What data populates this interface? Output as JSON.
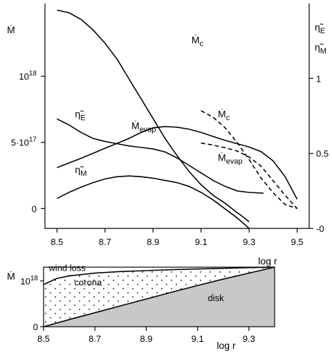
{
  "chart_data": [
    {
      "type": "line",
      "xlabel": "log r",
      "ylabel": "Ṁ",
      "y2label": [
        "η̃E",
        "η̃M"
      ],
      "xlim": [
        8.45,
        9.55
      ],
      "ylim": [
        -1.5e+17,
        1.55e+18
      ],
      "y2lim": [
        0,
        1.5
      ],
      "x_ticks": [
        8.5,
        8.7,
        8.9,
        9.1,
        9.3,
        9.5
      ],
      "x_tick_labels": [
        "8.5",
        "8.7",
        "8.9",
        "9.1",
        "9.3",
        "9.5"
      ],
      "y_ticks": [
        0,
        5e+17,
        1e+18
      ],
      "y_tick_labels": [
        "0",
        "5·10¹⁷",
        "10¹⁸"
      ],
      "y2_ticks": [
        0,
        0.5,
        1
      ],
      "y2_tick_labels": [
        "0",
        "0.5",
        "1"
      ],
      "grid": false,
      "series": [
        {
          "name": "Ṁc",
          "style": "solid",
          "x": [
            8.5,
            8.55,
            8.6,
            8.65,
            8.7,
            8.75,
            8.8,
            8.85,
            8.9,
            8.95,
            9.0,
            9.05,
            9.1,
            9.15,
            9.2,
            9.25,
            9.28,
            9.3
          ],
          "y": [
            1.5e+18,
            1.48e+18,
            1.43e+18,
            1.35e+18,
            1.25e+18,
            1.13e+18,
            9.8e+17,
            8.3e+17,
            6.8e+17,
            5.3e+17,
            4e+17,
            2.8e+17,
            1.8e+17,
            1e+17,
            4e+16,
            -3e+16,
            -7e+16,
            -1e+17
          ]
        },
        {
          "name": "Ṁevap",
          "style": "solid",
          "x": [
            8.5,
            8.6,
            8.7,
            8.8,
            8.85,
            8.9,
            8.95,
            9.0,
            9.05,
            9.1,
            9.15,
            9.2,
            9.25,
            9.3,
            9.35,
            9.4,
            9.45,
            9.5
          ],
          "y": [
            3.1e+17,
            3.8e+17,
            4.55e+17,
            5.3e+17,
            5.75e+17,
            6.1e+17,
            6.2e+17,
            6.15e+17,
            6e+17,
            5.75e+17,
            5.45e+17,
            5.15e+17,
            4.9e+17,
            4.65e+17,
            4.3e+17,
            3.6e+17,
            2.4e+17,
            7e+16
          ]
        },
        {
          "name": "η̃E",
          "style": "solid",
          "axis": "y2",
          "x": [
            8.5,
            8.55,
            8.6,
            8.65,
            8.7,
            8.75,
            8.8,
            8.85,
            8.9,
            8.95,
            9.0,
            9.05,
            9.1,
            9.15,
            9.2,
            9.25,
            9.3,
            9.36
          ],
          "y": [
            0.73,
            0.69,
            0.64,
            0.6,
            0.58,
            0.565,
            0.55,
            0.54,
            0.53,
            0.51,
            0.47,
            0.42,
            0.37,
            0.32,
            0.28,
            0.25,
            0.24,
            0.235
          ]
        },
        {
          "name": "η̃M",
          "style": "solid",
          "axis": "y2",
          "x": [
            8.5,
            8.55,
            8.6,
            8.65,
            8.7,
            8.75,
            8.8,
            8.85,
            8.9,
            8.95,
            9.0,
            9.05,
            9.1,
            9.15,
            9.2,
            9.25,
            9.3
          ],
          "y": [
            0.2,
            0.24,
            0.275,
            0.305,
            0.33,
            0.345,
            0.35,
            0.345,
            0.335,
            0.32,
            0.305,
            0.28,
            0.24,
            0.19,
            0.13,
            0.07,
            0.0
          ]
        },
        {
          "name": "Ṁc",
          "style": "dashed",
          "x": [
            9.1,
            9.15,
            9.2,
            9.25,
            9.3,
            9.35,
            9.4,
            9.45,
            9.5
          ],
          "y": [
            7.4e+17,
            6.9e+17,
            6.1e+17,
            5e+17,
            3.7e+17,
            2.3e+17,
            1.2e+17,
            3e+16,
            0.0
          ]
        },
        {
          "name": "Ṁevap",
          "style": "dashed",
          "x": [
            9.1,
            9.15,
            9.2,
            9.25,
            9.3,
            9.35,
            9.4,
            9.45,
            9.5
          ],
          "y": [
            4.95e+17,
            4.8e+17,
            4.6e+17,
            4.35e+17,
            3.9e+17,
            3.2e+17,
            2.1e+17,
            1e+17,
            0.0
          ]
        }
      ],
      "annotations": [
        {
          "text": "Ṁ",
          "sub": "c",
          "x": 9.06,
          "y": 1.25e+18
        },
        {
          "text": "Ṁ",
          "sub": "evap",
          "x": 8.81,
          "y": 6e+17
        },
        {
          "text": "η̃",
          "sub": "E",
          "x": 8.575,
          "y": 0.74,
          "axis": "y2"
        },
        {
          "text": "η̃",
          "sub": "M",
          "x": 8.575,
          "y": 0.37,
          "axis": "y2"
        },
        {
          "text": "Ṁ",
          "sub": "c",
          "x": 9.17,
          "y": 6.9e+17
        },
        {
          "text": "Ṁ",
          "sub": "evap",
          "x": 9.17,
          "y": 3.6e+17
        }
      ]
    },
    {
      "type": "area",
      "xlabel": "log r",
      "ylabel": "Ṁ",
      "xlim": [
        8.5,
        9.4
      ],
      "ylim": [
        0,
        1.3e+18
      ],
      "x_ticks": [
        8.5,
        8.7,
        8.9,
        9.1,
        9.3
      ],
      "x_tick_labels": [
        "8.5",
        "8.7",
        "8.9",
        "9.1",
        "9.3"
      ],
      "y_ticks": [
        0,
        1e+18
      ],
      "y_tick_labels": [
        "0",
        "10¹⁸"
      ],
      "grid": false,
      "curves": {
        "disk_upper": {
          "x": [
            8.5,
            8.6,
            8.7,
            8.8,
            8.9,
            9.0,
            9.1,
            9.2,
            9.3,
            9.4
          ],
          "y": [
            0.0,
            1.55e+17,
            3.05e+17,
            4.55e+17,
            6.05e+17,
            7.55e+17,
            9e+17,
            1.04e+18,
            1.17e+18,
            1.3e+18
          ]
        },
        "corona_upper": {
          "x": [
            8.5,
            8.55,
            8.6,
            8.7,
            8.8,
            8.9,
            9.0,
            9.1,
            9.2,
            9.3,
            9.4
          ],
          "y": [
            9.2e+17,
            1.05e+18,
            1.11e+18,
            1.17e+18,
            1.205e+18,
            1.225e+18,
            1.245e+18,
            1.26e+18,
            1.275e+18,
            1.29e+18,
            1.3e+18
          ]
        }
      },
      "regions": [
        {
          "label": "wind loss",
          "x": 8.52,
          "y": 1.22e+18
        },
        {
          "label": "corona",
          "x": 8.62,
          "y": 9e+17
        },
        {
          "label": "disk",
          "x": 9.14,
          "y": 5.6e+17
        }
      ],
      "colors": {
        "disk_fill": "#c8c8c8",
        "corona_dots": "#000000"
      }
    }
  ]
}
